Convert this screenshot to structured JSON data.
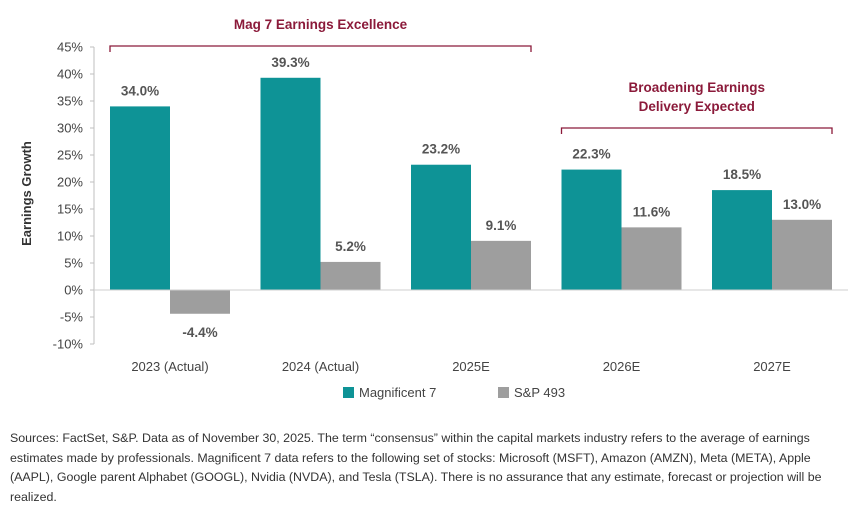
{
  "chart_data": {
    "type": "bar",
    "categories": [
      "2023 (Actual)",
      "2024 (Actual)",
      "2025E",
      "2026E",
      "2027E"
    ],
    "series": [
      {
        "name": "Magnificent 7",
        "values": [
          34.0,
          39.3,
          23.2,
          22.3,
          18.5
        ],
        "labels": [
          "34.0%",
          "39.3%",
          "23.2%",
          "22.3%",
          "18.5%"
        ],
        "color": "#0e9396"
      },
      {
        "name": "S&P 493",
        "values": [
          -4.4,
          5.2,
          9.1,
          11.6,
          13.0
        ],
        "labels": [
          "-4.4%",
          "5.2%",
          "9.1%",
          "11.6%",
          "13.0%"
        ],
        "color": "#9e9e9e"
      }
    ],
    "ylabel": "Earnings Growth",
    "xlabel": "",
    "ylim": [
      -10,
      45
    ],
    "yticks": [
      -10,
      -5,
      0,
      5,
      10,
      15,
      20,
      25,
      30,
      35,
      40,
      45
    ],
    "ytick_labels": [
      "-10%",
      "-5%",
      "0%",
      "5%",
      "10%",
      "15%",
      "20%",
      "25%",
      "30%",
      "35%",
      "40%",
      "45%"
    ],
    "grid": false,
    "legend_position": "bottom-center",
    "annotations": [
      {
        "text_lines": [
          "Mag 7 Earnings Excellence"
        ],
        "span_categories": [
          0,
          2
        ],
        "color": "#8b1a3a"
      },
      {
        "text_lines": [
          "Broadening Earnings",
          "Delivery Expected"
        ],
        "span_categories": [
          3,
          4
        ],
        "color": "#8b1a3a"
      }
    ]
  },
  "footnote": "Sources: FactSet, S&P. Data as of November 30, 2025. The term “consensus” within the capital markets industry refers to the average of earnings estimates made by professionals. Magnificent 7 data refers to the following set of stocks: Microsoft (MSFT), Amazon (AMZN), Meta (META), Apple (AAPL), Google parent Alphabet (GOOGL), Nvidia (NVDA), and Tesla (TSLA). There is no assurance that any estimate, forecast or projection will be realized."
}
